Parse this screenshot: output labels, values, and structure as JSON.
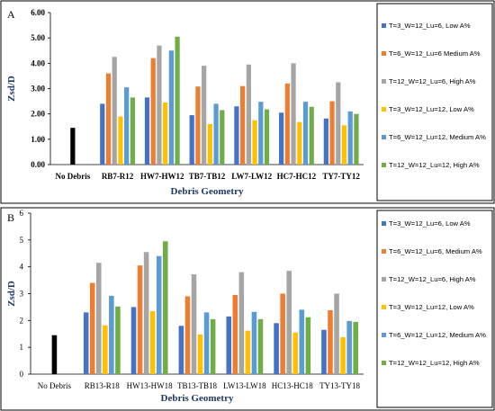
{
  "chart_data": [
    {
      "type": "bar",
      "panel": "A",
      "categories": [
        "No Debris",
        "RB7-R12",
        "HW7-HW12",
        "TB7-TB12",
        "LW7-LW12",
        "HC7-HC12",
        "TY7-TY12"
      ],
      "xlabel": "Debris Geometry",
      "ylabel": "Zsd/D",
      "ylim": [
        0,
        6
      ],
      "yticks": [
        "0.00",
        "1.00",
        "2.00",
        "3.00",
        "4.00",
        "5.00",
        "6.00"
      ],
      "grid": false,
      "legend_position": "right",
      "no_debris": {
        "value": 1.45,
        "color": "#000000"
      },
      "series": [
        {
          "name": "T=3_W=12_Lu=6, Low A%",
          "color": "#4472c4",
          "values": [
            null,
            2.4,
            2.65,
            1.95,
            2.3,
            2.05,
            1.82
          ]
        },
        {
          "name": "T=6_W=12_Lu=6 Medium A%",
          "color": "#ed7d31",
          "values": [
            null,
            3.6,
            4.2,
            3.08,
            3.1,
            3.2,
            2.5
          ]
        },
        {
          "name": "T=12_W=12_Lu=6, High A%",
          "color": "#a5a5a5",
          "values": [
            null,
            4.25,
            4.7,
            3.9,
            3.95,
            4.0,
            3.25
          ]
        },
        {
          "name": "T=3_W=12_Lu=12, Low A%",
          "color": "#ffc000",
          "values": [
            null,
            1.9,
            2.45,
            1.6,
            1.75,
            1.68,
            1.55
          ]
        },
        {
          "name": "T=6_W=12_Lu=12, Medium A%",
          "color": "#5b9bd5",
          "values": [
            null,
            3.05,
            4.5,
            2.4,
            2.48,
            2.48,
            2.1
          ]
        },
        {
          "name": "T=12_W=12_Lu=12, High A%",
          "color": "#70ad47",
          "values": [
            null,
            2.65,
            5.05,
            2.15,
            2.18,
            2.28,
            2.0
          ]
        }
      ]
    },
    {
      "type": "bar",
      "panel": "B",
      "categories": [
        "No Debris",
        "RB13-R18",
        "HW13-HW18",
        "TB13-TB18",
        "LW13-LW18",
        "HC13-HC18",
        "TY13-TY18"
      ],
      "xlabel": "Debris Geometry",
      "ylabel": "Zsd/D",
      "ylim": [
        0,
        6
      ],
      "yticks": [
        "0",
        "1",
        "2",
        "3",
        "4",
        "5",
        "6"
      ],
      "grid": false,
      "legend_position": "right",
      "no_debris": {
        "value": 1.45,
        "color": "#000000"
      },
      "series": [
        {
          "name": "T=3_W=12_Lu=6, Low A%",
          "color": "#4472c4",
          "values": [
            null,
            2.3,
            2.5,
            1.8,
            2.15,
            1.9,
            1.65
          ]
        },
        {
          "name": "T=6_W=12_Lu=6, Medium A%",
          "color": "#ed7d31",
          "values": [
            null,
            3.4,
            4.05,
            2.9,
            2.95,
            3.0,
            2.38
          ]
        },
        {
          "name": "T=12_W=12_Lu=6, High A%",
          "color": "#a5a5a5",
          "values": [
            null,
            4.15,
            4.55,
            3.72,
            3.8,
            3.85,
            3.0
          ]
        },
        {
          "name": "T=3_W=12_Lu=12, Low A%",
          "color": "#ffc000",
          "values": [
            null,
            1.82,
            2.35,
            1.48,
            1.62,
            1.55,
            1.38
          ]
        },
        {
          "name": "T=6_W=12_Lu=12, Medium A%",
          "color": "#5b9bd5",
          "values": [
            null,
            2.92,
            4.4,
            2.3,
            2.32,
            2.4,
            1.98
          ]
        },
        {
          "name": "T=12_W=12_Lu=12, High A%",
          "color": "#70ad47",
          "values": [
            null,
            2.52,
            4.95,
            2.05,
            2.05,
            2.12,
            1.95
          ]
        }
      ]
    }
  ]
}
